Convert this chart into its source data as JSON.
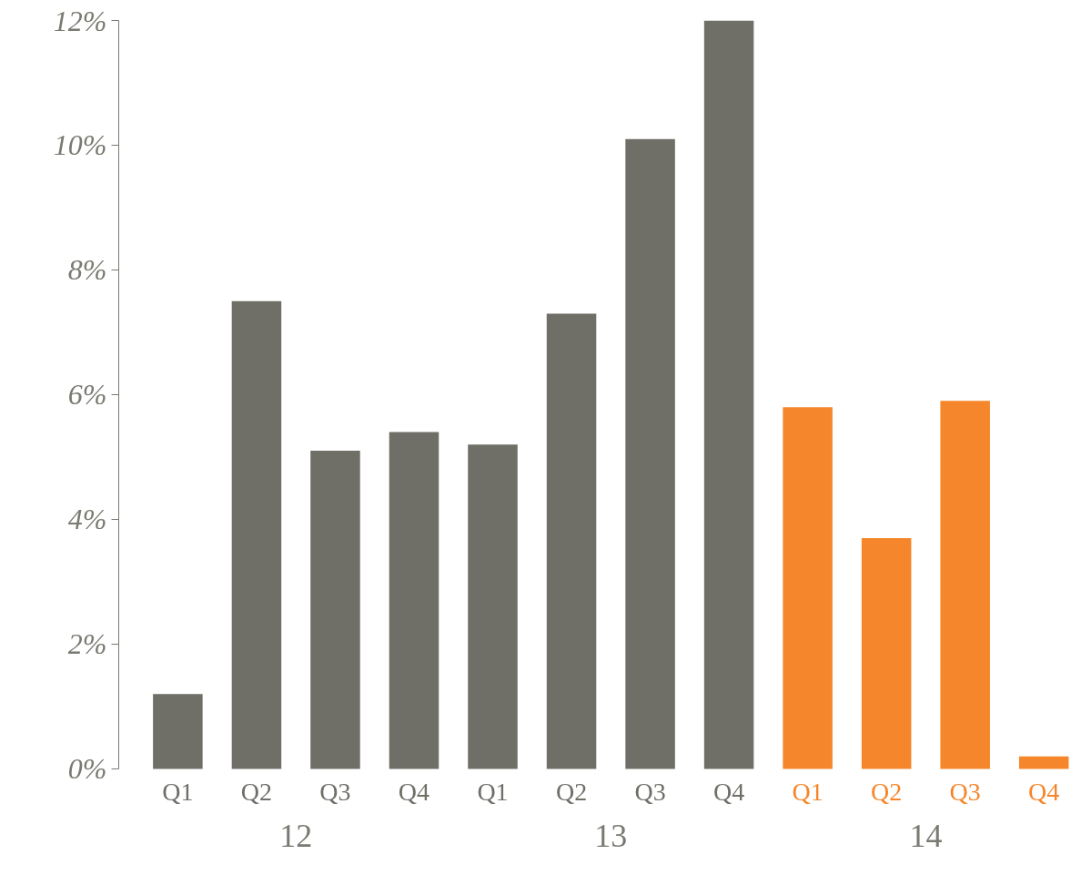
{
  "chart_data": {
    "type": "bar",
    "categories": [
      "Q1",
      "Q2",
      "Q3",
      "Q4",
      "Q1",
      "Q2",
      "Q3",
      "Q4",
      "Q1",
      "Q2",
      "Q3",
      "Q4"
    ],
    "values": [
      1.2,
      7.5,
      5.1,
      5.4,
      5.2,
      7.3,
      10.1,
      12.0,
      5.8,
      3.7,
      5.9,
      0.2
    ],
    "colors": [
      "#6f6f68",
      "#6f6f68",
      "#6f6f68",
      "#6f6f68",
      "#6f6f68",
      "#6f6f68",
      "#6f6f68",
      "#6f6f68",
      "#f5862b",
      "#f5862b",
      "#f5862b",
      "#f5862b"
    ],
    "ylim": [
      0,
      12
    ],
    "yticks": [
      {
        "value": 0,
        "label": "0%"
      },
      {
        "value": 2,
        "label": "2%"
      },
      {
        "value": 4,
        "label": "4%"
      },
      {
        "value": 6,
        "label": "6%"
      },
      {
        "value": 8,
        "label": "8%"
      },
      {
        "value": 10,
        "label": "10%"
      },
      {
        "value": 12,
        "label": "12%"
      }
    ],
    "annotations": [
      "12",
      "13",
      "14"
    ],
    "grid": false
  }
}
